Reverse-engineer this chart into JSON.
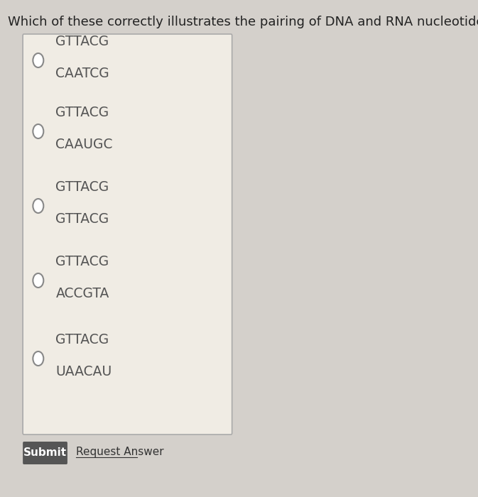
{
  "title": "Which of these correctly illustrates the pairing of DNA and RNA nucleotides",
  "background_color": "#d4d0cb",
  "box_color": "#f0ece4",
  "box_border_color": "#aaaaaa",
  "title_fontsize": 13,
  "options": [
    {
      "top": "GTTACG",
      "bottom": "CAATCG"
    },
    {
      "top": "GTTACG",
      "bottom": "CAAUGC"
    },
    {
      "top": "GTTACG",
      "bottom": "GTTACG"
    },
    {
      "top": "GTTACG",
      "bottom": "ACCGTA"
    },
    {
      "top": "GTTACG",
      "bottom": "UAACAU"
    }
  ],
  "text_color": "#555555",
  "circle_color": "#ffffff",
  "circle_edge_color": "#888888",
  "submit_bg": "#555555",
  "submit_text_color": "#ffffff",
  "submit_label": "Submit",
  "request_answer_label": "Request Answer",
  "request_answer_color": "#333333"
}
